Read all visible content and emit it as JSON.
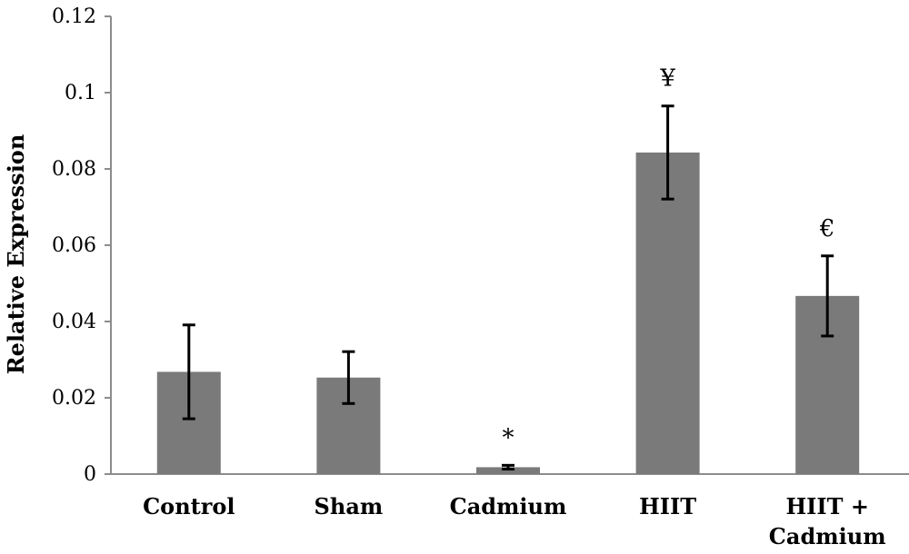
{
  "chart_data": {
    "type": "bar",
    "title": "",
    "xlabel": "",
    "ylabel": "Relative Expression",
    "ylim": [
      0,
      0.12
    ],
    "yticks": [
      "0",
      "0.02",
      "0.04",
      "0.06",
      "0.08",
      "0.1",
      "0.12"
    ],
    "categories": [
      [
        "Control"
      ],
      [
        "Sham"
      ],
      [
        "Cadmium"
      ],
      [
        "HIIT"
      ],
      [
        "HIIT +",
        "Cadmium"
      ]
    ],
    "series": [
      {
        "values": [
          0.0268,
          0.0253,
          0.0018,
          0.0843,
          0.0467
        ],
        "error": [
          0.0123,
          0.0068,
          0.0005,
          0.0122,
          0.0105
        ],
        "color": "#7a7a7a"
      }
    ],
    "annotations": [
      "",
      "",
      "*",
      "¥",
      "€"
    ],
    "grid": false,
    "legend": "none"
  }
}
